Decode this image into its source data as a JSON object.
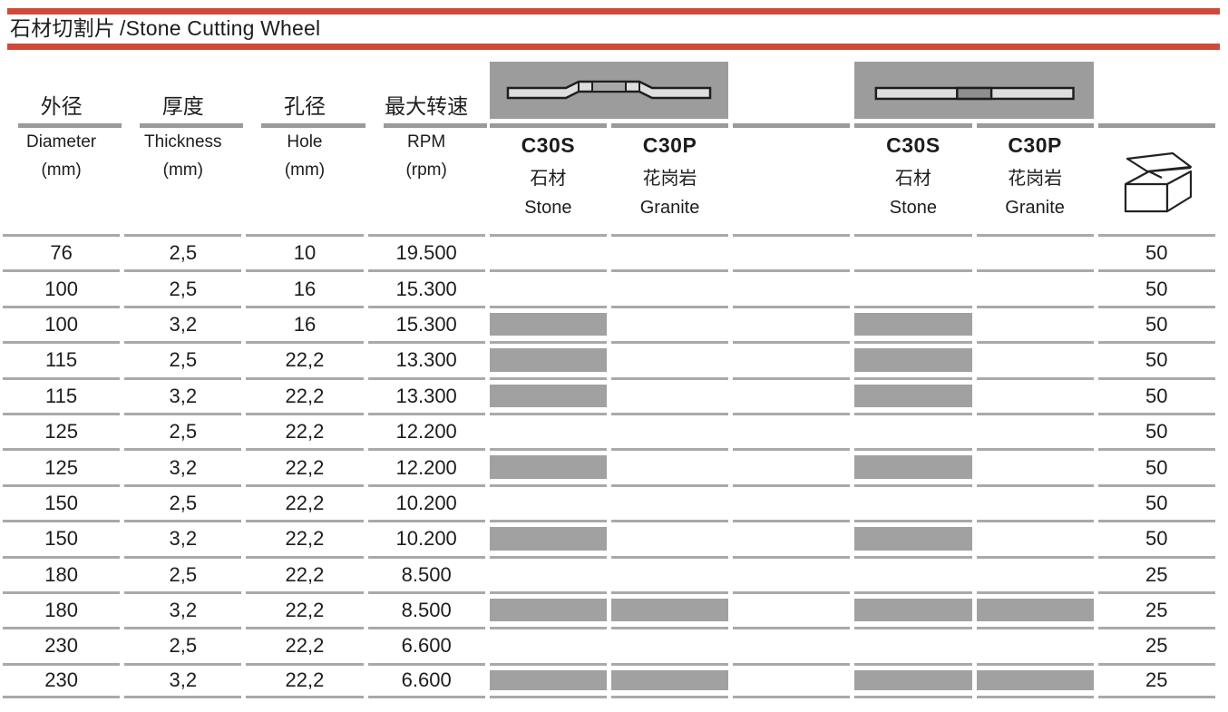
{
  "header": {
    "title_zh": "石材切割片",
    "title_en": "/Stone Cutting Wheel"
  },
  "colors": {
    "accent_red": "#cf4a39",
    "image_box_gray": "#9c9c9c",
    "availability_gray": "#a1a1a1",
    "row_rule_gray": "#a9a9a9",
    "header_rule_gray": "#9a9a9a"
  },
  "table": {
    "spec_columns": [
      {
        "name_zh": "外径",
        "name_en": "Diameter",
        "unit": "(mm)"
      },
      {
        "name_zh": "厚度",
        "name_en": "Thickness",
        "unit": "(mm)"
      },
      {
        "name_zh": "孔径",
        "name_en": "Hole",
        "unit": "(mm)"
      },
      {
        "name_zh": "最大转速",
        "name_en": "RPM",
        "unit": "(rpm)"
      }
    ],
    "product_groups": [
      {
        "wheel_image": "depressed-center-cutting-wheel-profile",
        "products": [
          {
            "code": "C30S",
            "material_zh": "石材",
            "material_en": "Stone"
          },
          {
            "code": "C30P",
            "material_zh": "花岗岩",
            "material_en": "Granite"
          }
        ]
      },
      {
        "wheel_image": "flat-cutting-wheel-profile",
        "products": [
          {
            "code": "C30S",
            "material_zh": "石材",
            "material_en": "Stone"
          },
          {
            "code": "C30P",
            "material_zh": "花岗岩",
            "material_en": "Granite"
          }
        ]
      }
    ],
    "package_icon": "open-box-icon",
    "rows": [
      {
        "diameter": "76",
        "thickness": "2,5",
        "hole": "10",
        "rpm": "19.500",
        "availability": [
          false,
          false,
          false,
          false
        ],
        "package_qty": "50"
      },
      {
        "diameter": "100",
        "thickness": "2,5",
        "hole": "16",
        "rpm": "15.300",
        "availability": [
          false,
          false,
          false,
          false
        ],
        "package_qty": "50"
      },
      {
        "diameter": "100",
        "thickness": "3,2",
        "hole": "16",
        "rpm": "15.300",
        "availability": [
          true,
          false,
          true,
          false
        ],
        "package_qty": "50"
      },
      {
        "diameter": "115",
        "thickness": "2,5",
        "hole": "22,2",
        "rpm": "13.300",
        "availability": [
          true,
          false,
          true,
          false
        ],
        "package_qty": "50"
      },
      {
        "diameter": "115",
        "thickness": "3,2",
        "hole": "22,2",
        "rpm": "13.300",
        "availability": [
          true,
          false,
          true,
          false
        ],
        "package_qty": "50"
      },
      {
        "diameter": "125",
        "thickness": "2,5",
        "hole": "22,2",
        "rpm": "12.200",
        "availability": [
          false,
          false,
          false,
          false
        ],
        "package_qty": "50"
      },
      {
        "diameter": "125",
        "thickness": "3,2",
        "hole": "22,2",
        "rpm": "12.200",
        "availability": [
          true,
          false,
          true,
          false
        ],
        "package_qty": "50"
      },
      {
        "diameter": "150",
        "thickness": "2,5",
        "hole": "22,2",
        "rpm": "10.200",
        "availability": [
          false,
          false,
          false,
          false
        ],
        "package_qty": "50"
      },
      {
        "diameter": "150",
        "thickness": "3,2",
        "hole": "22,2",
        "rpm": "10.200",
        "availability": [
          true,
          false,
          true,
          false
        ],
        "package_qty": "50"
      },
      {
        "diameter": "180",
        "thickness": "2,5",
        "hole": "22,2",
        "rpm": "8.500",
        "availability": [
          false,
          false,
          false,
          false
        ],
        "package_qty": "25"
      },
      {
        "diameter": "180",
        "thickness": "3,2",
        "hole": "22,2",
        "rpm": "8.500",
        "availability": [
          true,
          true,
          true,
          true
        ],
        "package_qty": "25"
      },
      {
        "diameter": "230",
        "thickness": "2,5",
        "hole": "22,2",
        "rpm": "6.600",
        "availability": [
          false,
          false,
          false,
          false
        ],
        "package_qty": "25"
      },
      {
        "diameter": "230",
        "thickness": "3,2",
        "hole": "22,2",
        "rpm": "6.600",
        "availability": [
          true,
          true,
          true,
          true
        ],
        "package_qty": "25"
      }
    ]
  }
}
